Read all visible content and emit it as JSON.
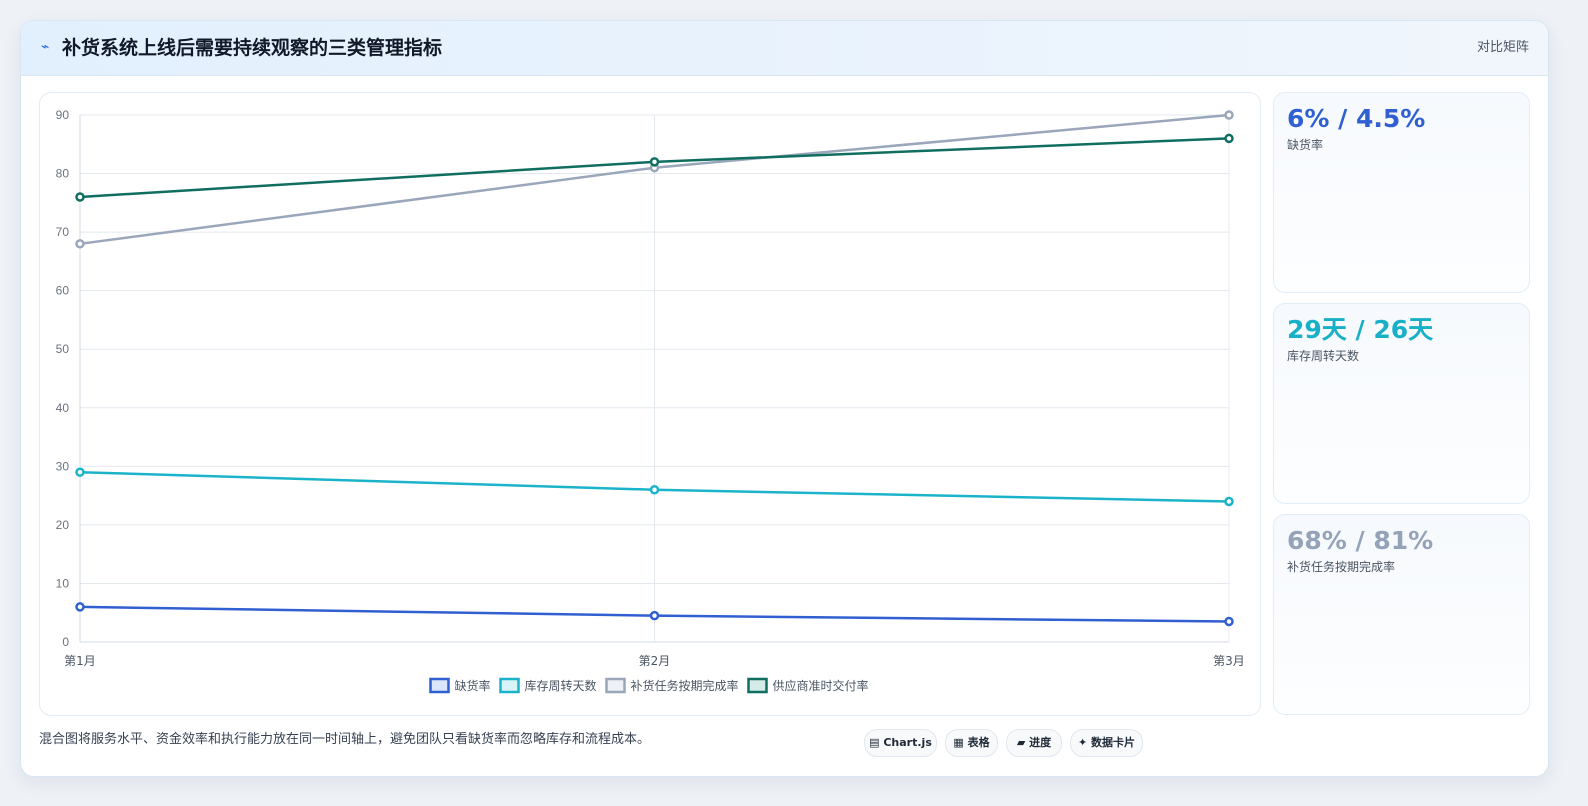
{
  "header": {
    "icon": "lightning-icon",
    "title": "补货系统上线后需要持续观察的三类管理指标",
    "tag": "对比矩阵"
  },
  "chart_data": {
    "type": "line",
    "categories": [
      "第1月",
      "第2月",
      "第3月"
    ],
    "yticks": [
      0,
      10,
      20,
      30,
      40,
      50,
      60,
      70,
      80,
      90
    ],
    "ylim": [
      0,
      90
    ],
    "grid": true,
    "legend_position": "bottom",
    "series": [
      {
        "name": "缺货率",
        "values": [
          6,
          4.5,
          3.5
        ],
        "color": "#2f5fd0",
        "fill": "#dbe6fb"
      },
      {
        "name": "库存周转天数",
        "values": [
          29,
          26,
          24
        ],
        "color": "#1bb3c9",
        "fill": "#d8f4f8"
      },
      {
        "name": "补货任务按期完成率",
        "values": [
          68,
          81,
          90
        ],
        "color": "#9aa6ba",
        "fill": "#eef1f5"
      },
      {
        "name": "供应商准时交付率",
        "values": [
          76,
          82,
          86
        ],
        "color": "#0f6e60",
        "fill": "#d5ebe7"
      }
    ]
  },
  "kpis": [
    {
      "value": "6% / 4.5%",
      "label": "缺货率",
      "color": "#2f5fd0"
    },
    {
      "value": "29天 / 26天",
      "label": "库存周转天数",
      "color": "#18b0c6"
    },
    {
      "value": "68% / 81%",
      "label": "补货任务按期完成率",
      "color": "#94a3b8"
    }
  ],
  "footer": {
    "note": "混合图将服务水平、资金效率和执行能力放在同一时间轴上，避免团队只看缺货率而忽略库存和流程成本。",
    "tags": [
      {
        "icon": "chart-icon",
        "glyph": "▤",
        "label": "Chart.js"
      },
      {
        "icon": "table-icon",
        "glyph": "▦",
        "label": "表格"
      },
      {
        "icon": "progress-icon",
        "glyph": "▰",
        "label": "进度"
      },
      {
        "icon": "sparkle-icon",
        "glyph": "✦",
        "label": "数据卡片"
      }
    ]
  }
}
